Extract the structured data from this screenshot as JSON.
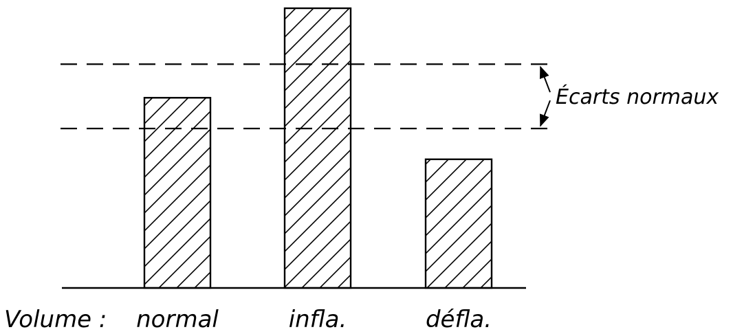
{
  "chart_data": {
    "type": "bar",
    "x_axis_label": "Volume :",
    "categories": [
      "normal",
      "infla.",
      "défla."
    ],
    "values": [
      68,
      100,
      46
    ],
    "ylim": [
      0,
      100
    ],
    "normal_range": {
      "label": "Écarts normaux",
      "low": 57,
      "high": 80
    },
    "bar_fill": "diagonal hatch",
    "grid": false,
    "legend": "none",
    "colors": {
      "ink": "#000000",
      "background": "#ffffff"
    }
  }
}
